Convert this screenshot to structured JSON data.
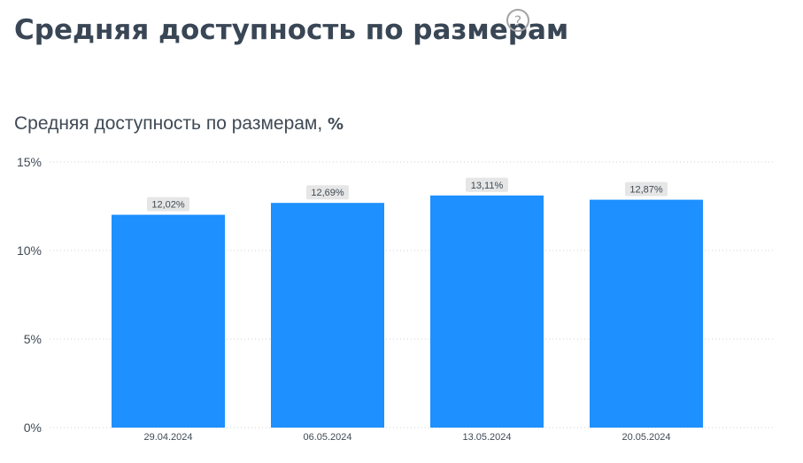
{
  "page": {
    "title": "Средняя доступность по размерам",
    "help_icon": "question-circle-icon"
  },
  "chart_data": {
    "type": "bar",
    "title": "Средняя доступность по размерам,",
    "title_unit": "%",
    "categories": [
      "29.04.2024",
      "06.05.2024",
      "13.05.2024",
      "20.05.2024"
    ],
    "values": [
      12.02,
      12.69,
      13.11,
      12.87
    ],
    "data_labels": [
      "12,02%",
      "12,69%",
      "13,11%",
      "12,87%"
    ],
    "y_ticks": [
      0,
      5,
      10,
      15
    ],
    "y_tick_labels": [
      "0%",
      "5%",
      "10%",
      "15%"
    ],
    "ylim": [
      0,
      15
    ],
    "grid": true,
    "colors": {
      "bar": "#1e90ff",
      "label_bg": "#e6e6e6",
      "grid": "#d0d0d0",
      "text": "#3f4a55"
    }
  }
}
